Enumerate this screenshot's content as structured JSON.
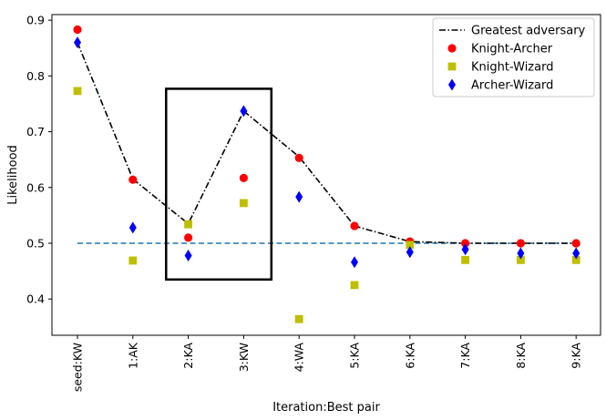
{
  "chart_data": {
    "type": "scatter",
    "xlabel": "Iteration:Best pair",
    "ylabel": "Likelihood",
    "categories": [
      "seed:KW",
      "1:AK",
      "2:KA",
      "3:KW",
      "4:WA",
      "5:KA",
      "6:KA",
      "7:KA",
      "8:KA",
      "9:KA"
    ],
    "ylim": [
      0.335,
      0.91
    ],
    "yticks": [
      0.4,
      0.5,
      0.6,
      0.7,
      0.8,
      0.9
    ],
    "ytick_labels": [
      "0.4",
      "0.5",
      "0.6",
      "0.7",
      "0.8",
      "0.9"
    ],
    "grid": false,
    "legend_position": "top-right",
    "series": [
      {
        "name": "Greatest adversary",
        "kind": "line",
        "style": "dash-dot",
        "color": "#000000",
        "values": [
          0.86,
          0.615,
          0.535,
          0.737,
          0.655,
          0.531,
          0.503,
          0.5,
          0.5,
          0.5
        ]
      },
      {
        "name": "Knight-Archer",
        "kind": "marker",
        "marker": "circle",
        "color": "#ff0000",
        "values": [
          0.883,
          0.614,
          0.51,
          0.617,
          0.653,
          0.531,
          0.503,
          0.5,
          0.5,
          0.5
        ]
      },
      {
        "name": "Knight-Wizard",
        "kind": "marker",
        "marker": "square",
        "color": "#bfbf00",
        "values": [
          0.773,
          0.469,
          0.534,
          0.572,
          0.364,
          0.425,
          0.497,
          0.47,
          0.47,
          0.47
        ]
      },
      {
        "name": "Archer-Wizard",
        "kind": "marker",
        "marker": "diamond",
        "color": "#0000ff",
        "values": [
          0.86,
          0.528,
          0.478,
          0.737,
          0.583,
          0.466,
          0.484,
          0.489,
          0.482,
          0.482
        ]
      }
    ],
    "reference_line": {
      "y": 0.5,
      "style": "dashed",
      "color": "#1f77b4"
    },
    "highlight_box": {
      "x_from": 1.6,
      "x_to": 3.5,
      "y_from": 0.435,
      "y_to": 0.777
    }
  }
}
